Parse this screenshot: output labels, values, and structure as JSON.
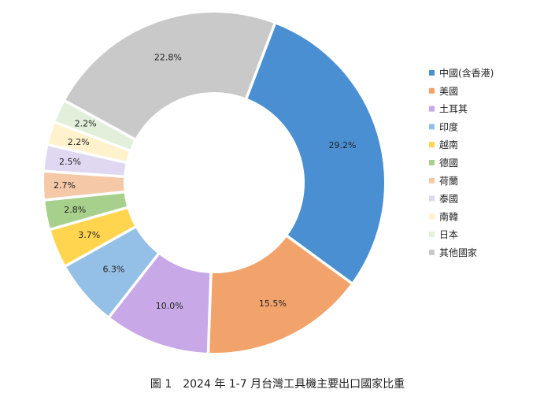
{
  "chart_data": {
    "type": "pie",
    "donut": true,
    "title": "",
    "caption": "圖 1　2024 年 1-7 月台灣工具機主要出口國家比重",
    "legend_position": "right",
    "slices": [
      {
        "name": "中國(含香港)",
        "value": 29.2,
        "label": "29.2%",
        "color": "#4a8fd2"
      },
      {
        "name": "美國",
        "value": 15.5,
        "label": "15.5%",
        "color": "#f2a36b"
      },
      {
        "name": "土耳其",
        "value": 10.0,
        "label": "10.0%",
        "color": "#c8a8e6"
      },
      {
        "name": "印度",
        "value": 6.3,
        "label": "6.3%",
        "color": "#94bfe6"
      },
      {
        "name": "越南",
        "value": 3.7,
        "label": "3.7%",
        "color": "#ffd54f"
      },
      {
        "name": "德國",
        "value": 2.8,
        "label": "2.8%",
        "color": "#a8d08d"
      },
      {
        "name": "荷蘭",
        "value": 2.7,
        "label": "2.7%",
        "color": "#f5c8a8"
      },
      {
        "name": "泰國",
        "value": 2.5,
        "label": "2.5%",
        "color": "#e0d8f0"
      },
      {
        "name": "南韓",
        "value": 2.2,
        "label": "2.2%",
        "color": "#fff2cc"
      },
      {
        "name": "日本",
        "value": 2.2,
        "label": "2.2%",
        "color": "#e2efda"
      },
      {
        "name": "其他國家",
        "value": 22.8,
        "label": "22.8%",
        "color": "#c9c9c9"
      }
    ]
  }
}
